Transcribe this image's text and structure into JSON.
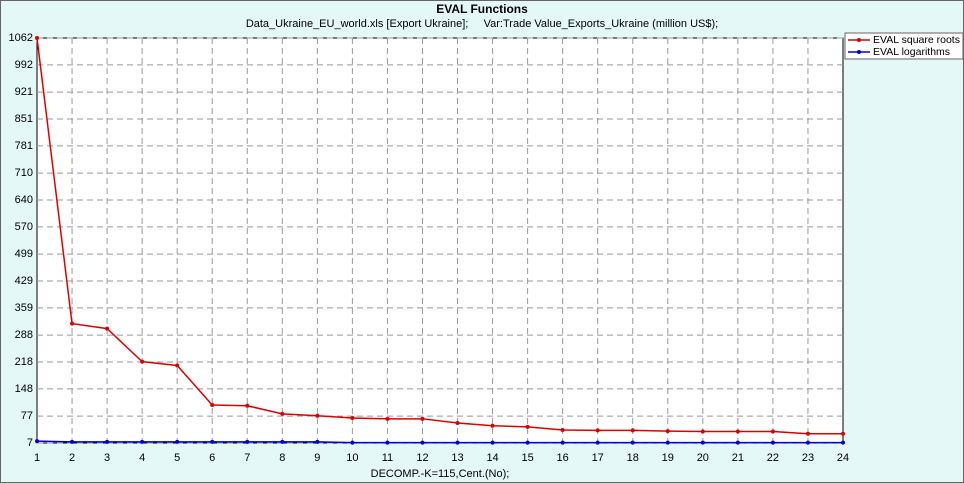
{
  "chart_data": {
    "type": "line",
    "title": "EVAL Functions",
    "subtitle": "Data_Ukraine_EU_world.xls [Export Ukraine];     Var:Trade Value_Exports_Ukraine (million US$);",
    "x_label": "DECOMP.-K=115,Cent.(No);",
    "categories": [
      "1",
      "2",
      "3",
      "4",
      "5",
      "6",
      "7",
      "8",
      "9",
      "10",
      "11",
      "12",
      "13",
      "14",
      "15",
      "16",
      "17",
      "18",
      "19",
      "20",
      "21",
      "22",
      "23",
      "24"
    ],
    "series": [
      {
        "name": "EVAL square roots",
        "color": "#e00000",
        "values": [
          1062,
          318,
          305,
          219,
          209,
          106,
          104,
          83,
          78,
          72,
          70,
          70,
          59,
          52,
          49,
          41,
          40,
          40,
          38,
          37,
          37,
          37,
          31,
          31
        ]
      },
      {
        "name": "EVAL logarithms",
        "color": "#0000e0",
        "values": [
          12,
          10,
          10,
          10,
          10,
          10,
          10,
          10,
          10,
          8,
          8,
          8,
          8,
          8,
          8,
          8,
          8,
          8,
          8,
          8,
          8,
          8,
          8,
          8
        ]
      }
    ],
    "ylim": [
      7,
      1062
    ],
    "yticks": [
      7,
      77,
      148,
      218,
      288,
      359,
      429,
      499,
      570,
      640,
      710,
      781,
      851,
      921,
      992,
      1062
    ],
    "grid": true,
    "legend": "top-right"
  }
}
